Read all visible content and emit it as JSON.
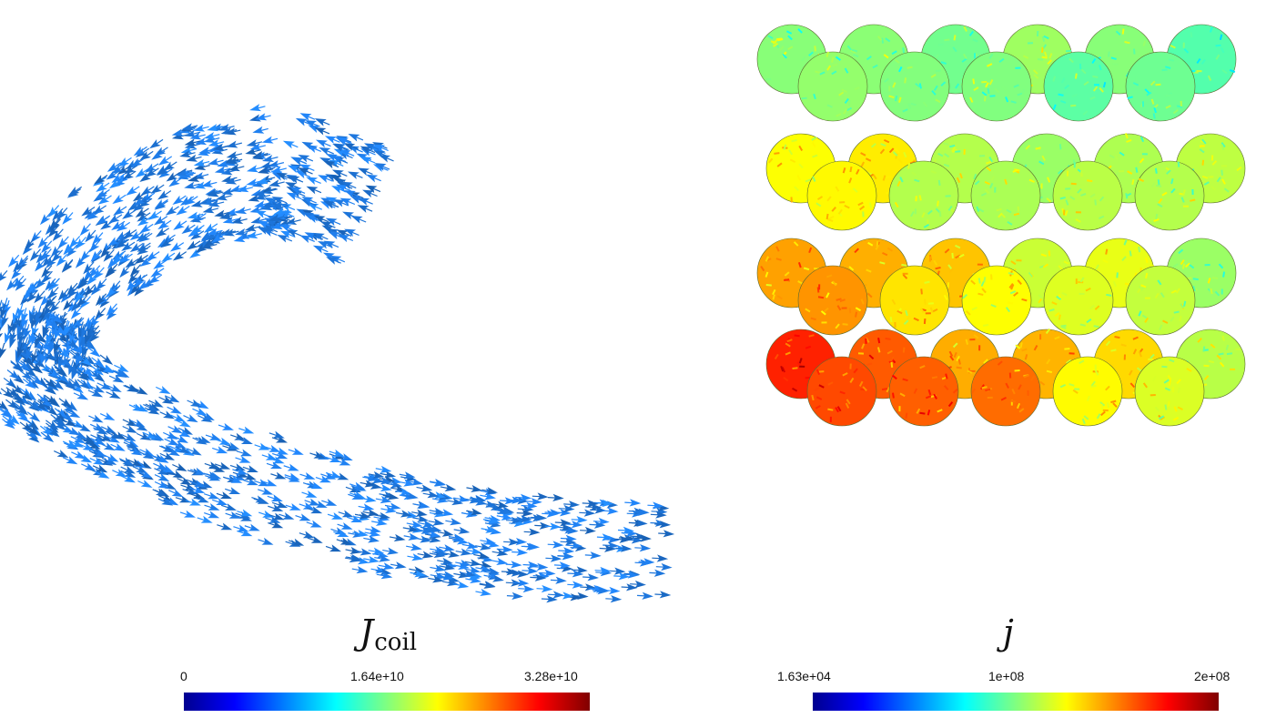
{
  "left_panel": {
    "label_symbol": "J",
    "label_subscript": "coil",
    "colorbar": {
      "ticks": [
        "0",
        "1.64e+10",
        "3.28e+10"
      ]
    }
  },
  "right_panel": {
    "label_symbol": "j",
    "colorbar": {
      "ticks": [
        "1.63e+04",
        "1e+08",
        "2e+08"
      ]
    }
  },
  "colormap": [
    "#00008f",
    "#0000ff",
    "#0080ff",
    "#00ffff",
    "#80ff80",
    "#ffff00",
    "#ff8000",
    "#ff0000",
    "#800000"
  ],
  "coil_arrow_color": "#1e78e0"
}
